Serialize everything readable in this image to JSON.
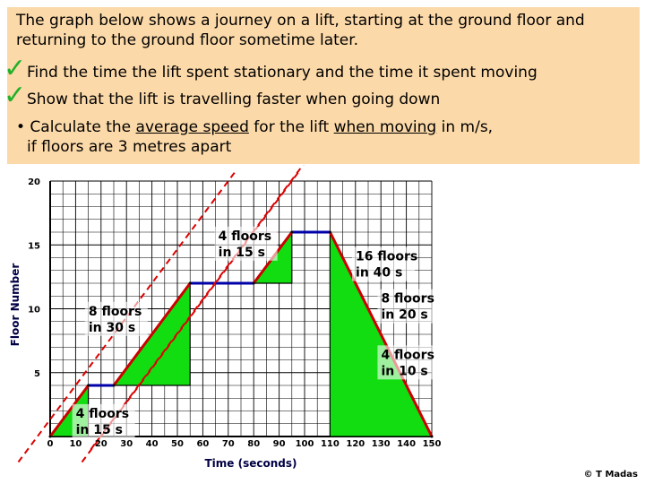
{
  "question": {
    "intro": "The graph below shows a journey on a lift, starting at the ground floor and returning to the ground floor sometime later.",
    "bullet1": "Find the time the lift spent stationary and the time it spent moving",
    "bullet2": "Show that the lift is travelling faster when going down",
    "bullet3_pre": "• Calculate the ",
    "bullet3_u1": "average speed",
    "bullet3_mid": " for the lift ",
    "bullet3_u2": "when moving",
    "bullet3_post": " in m/s,",
    "bullet3_line2": "if floors are 3 metres apart"
  },
  "checkmark_icon": "✓",
  "copyright": "© T Madas",
  "colors": {
    "panel": "#fcd9a8",
    "line": "#cc0000",
    "flat": "#0000aa",
    "fill": "#11dd11",
    "dashed": "#dd0000",
    "check": "#22b02a"
  },
  "chart_data": {
    "type": "line",
    "xlabel": "Time (seconds)",
    "ylabel": "Floor Number",
    "xlim": [
      0,
      150
    ],
    "ylim": [
      0,
      20
    ],
    "x_ticks": [
      0,
      10,
      20,
      30,
      40,
      50,
      60,
      70,
      80,
      90,
      100,
      110,
      120,
      130,
      140,
      150
    ],
    "y_ticks": [
      5,
      10,
      15,
      20
    ],
    "grid": true,
    "points": [
      [
        0,
        0
      ],
      [
        15,
        4
      ],
      [
        25,
        4
      ],
      [
        55,
        12
      ],
      [
        80,
        12
      ],
      [
        95,
        16
      ],
      [
        110,
        16
      ],
      [
        150,
        0
      ]
    ],
    "triangles": [
      [
        [
          0,
          0
        ],
        [
          15,
          0
        ],
        [
          15,
          4
        ]
      ],
      [
        [
          25,
          4
        ],
        [
          55,
          4
        ],
        [
          55,
          12
        ]
      ],
      [
        [
          80,
          12
        ],
        [
          95,
          12
        ],
        [
          95,
          16
        ]
      ],
      [
        [
          110,
          0
        ],
        [
          110,
          16
        ],
        [
          150,
          0
        ]
      ]
    ],
    "dashed_lines": [
      [
        [
          -12.5,
          -2
        ],
        [
          72.5,
          20.67
        ]
      ],
      [
        [
          12.5,
          -2
        ],
        [
          97.5,
          20.67
        ]
      ],
      [
        [
          16,
          -1
        ],
        [
          125,
          28.1
        ]
      ]
    ],
    "annotations": [
      {
        "text": [
          "4 floors",
          "in 15 s"
        ],
        "x": 77,
        "y": 15.1
      },
      {
        "text": [
          "16 floors",
          "in 40 s"
        ],
        "x": 131,
        "y": 13.5
      },
      {
        "text": [
          "8 floors",
          "in 30 s"
        ],
        "x": 26,
        "y": 9.2
      },
      {
        "text": [
          "8 floors",
          "in 20 s"
        ],
        "x": 141,
        "y": 10.2
      },
      {
        "text": [
          "4 floors",
          "in 10 s"
        ],
        "x": 141,
        "y": 5.8
      },
      {
        "text": [
          "4 floors",
          "in 15 s"
        ],
        "x": 21,
        "y": 1.2
      }
    ]
  }
}
